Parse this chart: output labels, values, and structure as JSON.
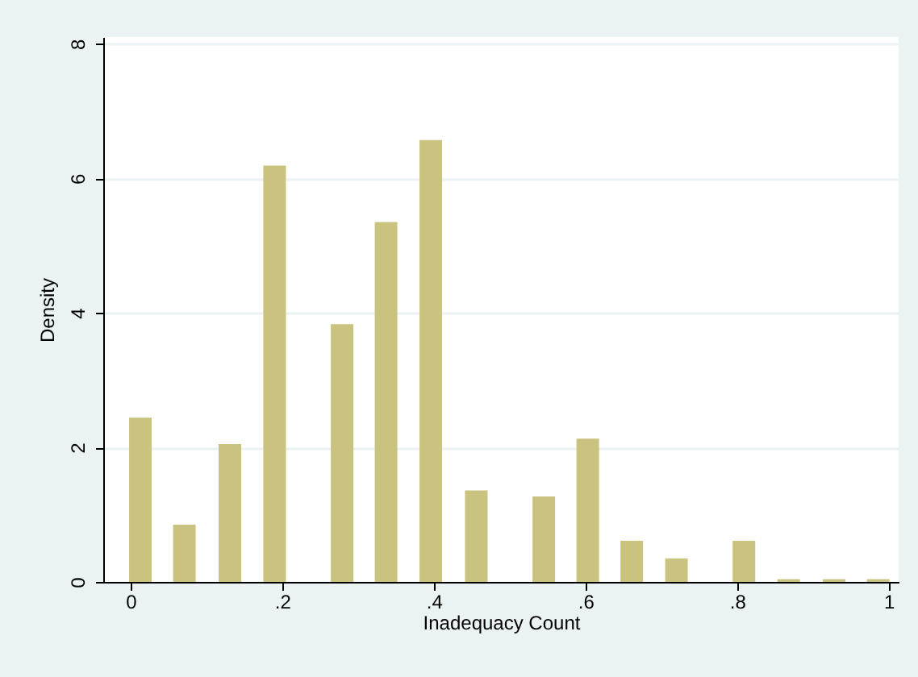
{
  "chart_data": {
    "type": "bar",
    "xlabel": "Inadequacy Count",
    "ylabel": "Density",
    "x": [
      0.013,
      0.071,
      0.131,
      0.19,
      0.279,
      0.337,
      0.396,
      0.456,
      0.545,
      0.603,
      0.661,
      0.72,
      0.809,
      0.868,
      0.928,
      0.986
    ],
    "values": [
      2.44,
      0.85,
      2.05,
      6.19,
      3.83,
      5.35,
      6.57,
      1.36,
      1.27,
      2.13,
      0.61,
      0.35,
      0.61,
      0.04,
      0.04,
      0.04
    ],
    "color": "#c9c37f",
    "xlim": [
      -0.036,
      1.013
    ],
    "xticks": [
      0,
      {
        "value": 0.2,
        "label": ".2"
      },
      {
        "value": 0.4,
        "label": ".4"
      },
      {
        "value": 0.6,
        "label": ".6"
      },
      {
        "value": 0.8,
        "label": ".8"
      },
      1
    ],
    "ylim": [
      0,
      8.1
    ],
    "yticks": [
      0,
      2,
      4,
      6,
      8
    ],
    "grid": "y"
  }
}
